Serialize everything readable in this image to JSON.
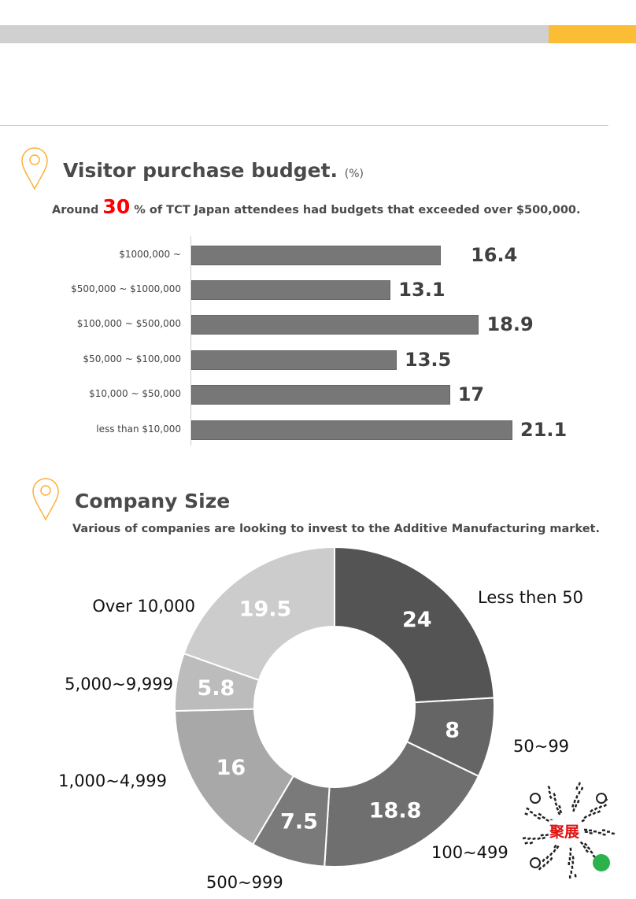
{
  "section1": {
    "title": "Visitor purchase budget.",
    "unit": "(%)",
    "subtitle_pre": "Around",
    "subtitle_highlight": "30",
    "subtitle_post": "%  of TCT Japan attendees had budgets that exceeded over $500,000."
  },
  "section2": {
    "title": "Company Size",
    "subtitle": "Various of companies are looking to invest to the Additive Manufacturing market."
  },
  "qr": {
    "logo_text": "聚展"
  },
  "colors": {
    "accent": "#fbbd35",
    "bar": "#777777",
    "highlight": "#ff0000"
  },
  "chart_data": [
    {
      "type": "bar",
      "orientation": "horizontal",
      "title": "Visitor purchase budget. (%)",
      "categories": [
        "$1000,000 ~",
        "$500,000 ~ $1000,000",
        "$100,000 ~ $500,000",
        "$50,000 ~ $100,000",
        "$10,000 ~ $50,000",
        "less than $10,000"
      ],
      "values": [
        16.4,
        13.1,
        18.9,
        13.5,
        17,
        21.1
      ],
      "value_labels": [
        "16.4",
        "13.1",
        "18.9",
        "13.5",
        "17",
        "21.1"
      ],
      "xlim": [
        0,
        21.1
      ]
    },
    {
      "type": "pie",
      "variant": "donut",
      "title": "Company Size",
      "categories": [
        "Less then 50",
        "50~99",
        "100~499",
        "500~999",
        "1,000~4,999",
        "5,000~9,999",
        "Over 10,000"
      ],
      "values": [
        24,
        8,
        18.8,
        7.5,
        16,
        5.8,
        19.5
      ],
      "value_labels": [
        "24",
        "8",
        "18.8",
        "7.5",
        "16",
        "5.8",
        "19.5"
      ],
      "colors": [
        "#545454",
        "#656565",
        "#6f6f6f",
        "#7a7a7a",
        "#a8a8a8",
        "#bcbcbc",
        "#cccccc"
      ]
    }
  ]
}
